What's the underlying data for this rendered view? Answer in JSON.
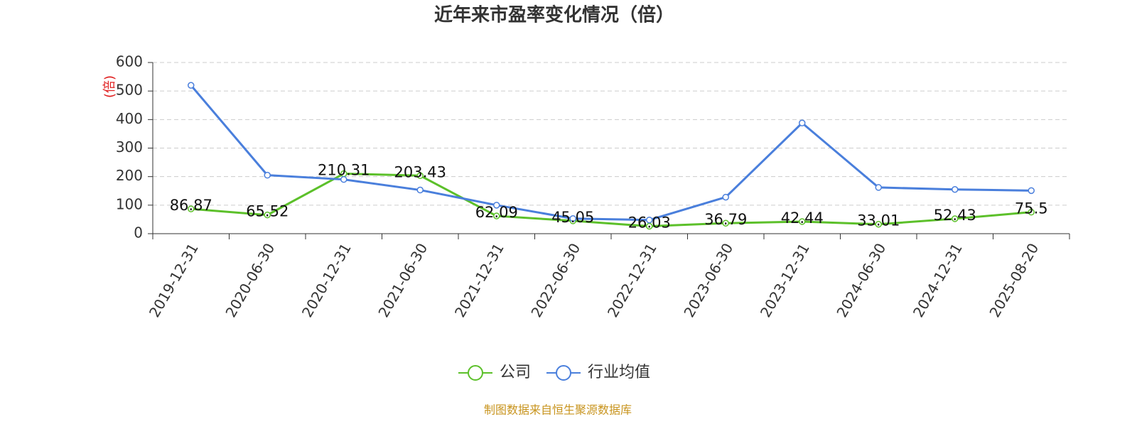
{
  "chart_data": {
    "type": "line",
    "title": "近年来市盈率变化情况（倍）",
    "y_label": "(倍)",
    "source": "制图数据来自恒生聚源数据库",
    "categories": [
      "2019-12-31",
      "2020-06-30",
      "2020-12-31",
      "2021-06-30",
      "2021-12-31",
      "2022-06-30",
      "2022-12-31",
      "2023-06-30",
      "2023-12-31",
      "2024-06-30",
      "2024-12-31",
      "2025-08-20"
    ],
    "series": [
      {
        "name": "公司",
        "color": "#5cc02a",
        "values": [
          86.87,
          65.52,
          210.31,
          203.43,
          62.09,
          45.05,
          26.03,
          36.79,
          42.44,
          33.01,
          52.43,
          75.5
        ],
        "show_labels": true
      },
      {
        "name": "行业均值",
        "color": "#4a7fdc",
        "values": [
          520,
          205,
          190,
          153,
          100,
          53,
          48,
          128,
          388,
          162,
          155,
          151
        ],
        "show_labels": false
      }
    ],
    "ylim": [
      0,
      600
    ],
    "yticks": [
      0,
      100,
      200,
      300,
      400,
      500,
      600
    ],
    "grid": true,
    "legend": "bottom"
  }
}
